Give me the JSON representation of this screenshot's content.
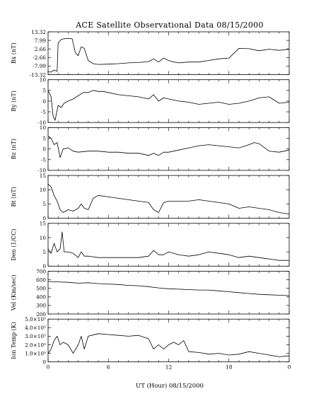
{
  "figure": {
    "title": "ACE Satellite Observational Data   08/15/2000",
    "xlabel": "UT (Hour)  08/15/2000",
    "x_tick_labels": [
      "0",
      "6",
      "12",
      "18",
      "0"
    ]
  },
  "chart_data": [
    {
      "type": "line",
      "ylabel": "Bx (nT)",
      "xlim": [
        0,
        24
      ],
      "ylim": [
        -13.32,
        13.32
      ],
      "yticks": [
        13.32,
        7.99,
        2.66,
        -2.66,
        -7.99,
        -13.32
      ],
      "ytick_labels": [
        "13.32",
        "7.99",
        "2.66",
        "-2.66",
        "-7.99",
        "-13.32"
      ],
      "x": [
        0,
        0.3,
        0.6,
        0.9,
        1.0,
        1.3,
        1.6,
        2.0,
        2.4,
        2.7,
        3.0,
        3.3,
        3.6,
        4.0,
        4.5,
        5,
        6,
        7,
        8,
        9,
        10,
        10.5,
        11,
        11.5,
        12,
        12.5,
        13,
        14,
        15,
        16,
        17,
        18,
        19,
        20,
        21,
        22,
        23,
        24
      ],
      "values": [
        -11.5,
        -11.8,
        -10.5,
        -11.2,
        6.5,
        8.5,
        9.0,
        9.2,
        9.0,
        0.5,
        -1.5,
        4.0,
        3.0,
        -4.5,
        -6.5,
        -7.0,
        -6.8,
        -6.5,
        -6.0,
        -5.8,
        -5.2,
        -3.5,
        -5.5,
        -3.0,
        -4.5,
        -5.5,
        -6.0,
        -5.5,
        -5.5,
        -4.5,
        -3.5,
        -3.0,
        3.0,
        2.8,
        1.5,
        2.5,
        1.8,
        2.5
      ]
    },
    {
      "type": "line",
      "ylabel": "By (nT)",
      "xlim": [
        0,
        24
      ],
      "ylim": [
        -10,
        10
      ],
      "yticks": [
        10,
        5,
        0,
        -5,
        -10
      ],
      "ytick_labels": [
        "10",
        "5",
        "0",
        "-5",
        "-10"
      ],
      "x": [
        0,
        0.3,
        0.5,
        0.7,
        1.0,
        1.3,
        1.6,
        2.0,
        2.5,
        3.0,
        3.5,
        4.0,
        4.5,
        5.0,
        5.5,
        6,
        7,
        8,
        9,
        10,
        10.5,
        11,
        11.5,
        12,
        13,
        14,
        15,
        16,
        17,
        18,
        19,
        20,
        21,
        22,
        23,
        24
      ],
      "values": [
        5.0,
        2.0,
        -7.0,
        -9.0,
        -2.0,
        -3.0,
        -1.0,
        0.0,
        1.0,
        2.5,
        4.0,
        4.0,
        5.0,
        4.5,
        4.5,
        4.0,
        3.0,
        2.5,
        2.0,
        1.0,
        3.0,
        0.0,
        1.5,
        1.0,
        0.0,
        -0.5,
        -1.5,
        -1.0,
        -0.5,
        -1.5,
        -1.0,
        0.0,
        1.5,
        2.0,
        -1.0,
        -0.5
      ]
    },
    {
      "type": "line",
      "ylabel": "Bz (nT)",
      "xlim": [
        0,
        24
      ],
      "ylim": [
        -10,
        10
      ],
      "yticks": [
        10,
        5,
        0,
        -5,
        -10
      ],
      "ytick_labels": [
        "10",
        "5",
        "0",
        "-5",
        "-10"
      ],
      "x": [
        0,
        0.3,
        0.6,
        0.9,
        1.2,
        1.5,
        2,
        2.5,
        3,
        4,
        5,
        6,
        7,
        8,
        9,
        10,
        10.5,
        11,
        11.5,
        12,
        13,
        14,
        15,
        16,
        17,
        18,
        19,
        20,
        20.5,
        21,
        22,
        23,
        24
      ],
      "values": [
        6.0,
        5.0,
        2.0,
        3.0,
        -4.0,
        0.0,
        0.5,
        -1.0,
        -1.5,
        -1.0,
        -1.0,
        -1.5,
        -1.5,
        -2.0,
        -2.0,
        -3.0,
        -2.0,
        -3.0,
        -1.5,
        -1.5,
        -0.5,
        0.5,
        1.5,
        2.0,
        1.5,
        1.0,
        0.5,
        2.0,
        3.0,
        2.5,
        -1.0,
        -1.5,
        -0.5
      ]
    },
    {
      "type": "line",
      "ylabel": "Bt (nT)",
      "xlim": [
        0,
        24
      ],
      "ylim": [
        0,
        15
      ],
      "yticks": [
        15,
        10,
        5,
        0
      ],
      "ytick_labels": [
        "15",
        "10",
        "5",
        "0"
      ],
      "x": [
        0,
        0.3,
        0.6,
        0.9,
        1.2,
        1.5,
        2.0,
        2.5,
        3.0,
        3.3,
        3.6,
        4.0,
        4.5,
        5,
        6,
        7,
        8,
        9,
        10,
        10.5,
        11,
        11.5,
        12,
        13,
        14,
        15,
        16,
        17,
        18,
        19,
        20,
        21,
        22,
        23,
        24
      ],
      "values": [
        12.0,
        11.0,
        8.0,
        6.0,
        3.0,
        2.0,
        3.0,
        2.5,
        3.5,
        5.0,
        3.5,
        3.0,
        7.0,
        8.0,
        7.5,
        7.0,
        6.5,
        6.0,
        5.5,
        3.0,
        2.0,
        5.5,
        6.0,
        6.0,
        6.0,
        6.5,
        6.0,
        5.5,
        5.0,
        3.5,
        4.0,
        3.5,
        3.0,
        2.0,
        1.5
      ]
    },
    {
      "type": "line",
      "ylabel": "Den (1/CC)",
      "xlim": [
        0,
        24
      ],
      "ylim": [
        0,
        15
      ],
      "yticks": [
        15,
        10,
        5,
        0
      ],
      "ytick_labels": [
        "15",
        "10",
        "5",
        "0"
      ],
      "x": [
        0,
        0.3,
        0.6,
        0.9,
        1.2,
        1.4,
        1.6,
        2.0,
        2.5,
        3.0,
        3.3,
        3.6,
        4.0,
        5,
        6,
        7,
        8,
        9,
        10,
        10.5,
        11,
        11.5,
        12,
        13,
        14,
        15,
        16,
        17,
        18,
        19,
        20,
        21,
        22,
        23,
        24
      ],
      "values": [
        6.0,
        4.5,
        8.0,
        5.0,
        6.0,
        12.0,
        5.0,
        5.0,
        4.5,
        3.0,
        5.0,
        3.5,
        3.5,
        3.0,
        3.0,
        3.0,
        3.0,
        3.0,
        3.5,
        5.5,
        4.0,
        4.0,
        5.0,
        4.0,
        3.5,
        4.0,
        5.0,
        4.5,
        4.0,
        3.0,
        3.5,
        3.0,
        2.5,
        2.0,
        2.0
      ]
    },
    {
      "type": "line",
      "ylabel": "Vel (Km/sec)",
      "xlim": [
        0,
        24
      ],
      "ylim": [
        200,
        700
      ],
      "yticks": [
        700,
        600,
        500,
        400,
        300,
        200
      ],
      "ytick_labels": [
        "700",
        "600",
        "500",
        "400",
        "300",
        "200"
      ],
      "x": [
        0,
        1,
        2,
        3,
        4,
        5,
        6,
        7,
        8,
        9,
        10,
        11,
        12,
        13,
        14,
        15,
        16,
        17,
        18,
        19,
        20,
        21,
        22,
        23,
        24
      ],
      "values": [
        580,
        575,
        570,
        560,
        565,
        555,
        550,
        545,
        535,
        530,
        520,
        505,
        495,
        490,
        485,
        480,
        480,
        470,
        460,
        450,
        440,
        430,
        425,
        420,
        415
      ]
    },
    {
      "type": "line",
      "ylabel": "Ion Temp (K)",
      "xlim": [
        0,
        24
      ],
      "ylim": [
        0,
        500000
      ],
      "yticks": [
        500000,
        400000,
        300000,
        200000,
        100000,
        0
      ],
      "ytick_labels": [
        "5.0×10⁵",
        "4.0×10⁵",
        "3.0×10⁵",
        "2.0×10⁵",
        "1.0×10⁵",
        "0"
      ],
      "x": [
        0,
        0.3,
        0.6,
        0.9,
        1.2,
        1.5,
        2.0,
        2.5,
        3.0,
        3.3,
        3.6,
        4.0,
        5,
        6,
        7,
        8,
        9,
        10,
        10.5,
        11,
        11.5,
        12,
        12.5,
        13,
        13.5,
        14,
        15,
        16,
        17,
        18,
        19,
        20,
        21,
        22,
        23,
        24
      ],
      "values": [
        100000,
        150000,
        250000,
        300000,
        200000,
        230000,
        200000,
        100000,
        200000,
        300000,
        150000,
        300000,
        330000,
        320000,
        310000,
        300000,
        310000,
        270000,
        150000,
        200000,
        150000,
        200000,
        230000,
        200000,
        250000,
        120000,
        110000,
        90000,
        100000,
        80000,
        90000,
        120000,
        100000,
        80000,
        60000,
        70000
      ]
    }
  ]
}
